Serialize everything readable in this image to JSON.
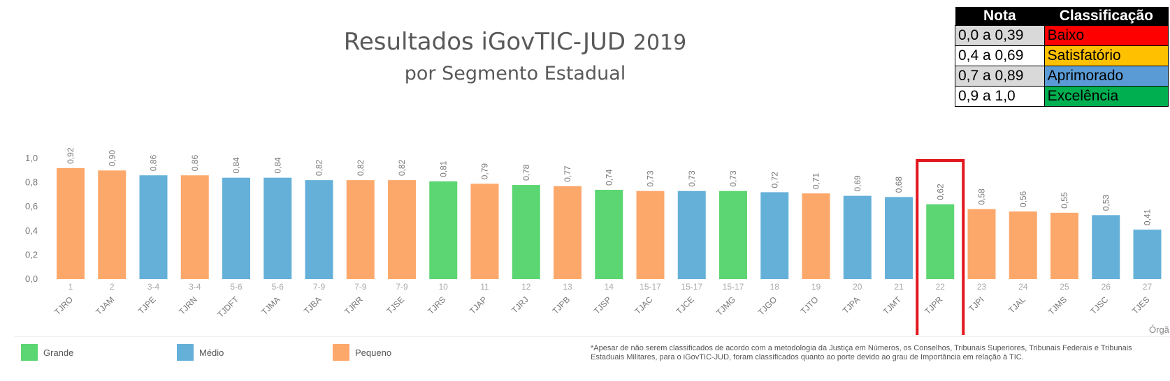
{
  "title": {
    "main": "Resultados iGovTIC-JUD",
    "year": "2019",
    "subtitle": "por Segmento Estadual"
  },
  "legend_table": {
    "headers": [
      "Nota",
      "Classificação"
    ],
    "rows": [
      {
        "range": "0,0 a 0,39",
        "label": "Baixo",
        "color": "#ff0000"
      },
      {
        "range": "0,4 a 0,69",
        "label": "Satisfatório",
        "color": "#ffc000"
      },
      {
        "range": "0,7 a 0,89",
        "label": "Aprimorado",
        "color": "#5b9bd5"
      },
      {
        "range": "0,9 a 1,0",
        "label": "Excelência",
        "color": "#00b050"
      }
    ]
  },
  "bottom_legend": [
    {
      "label": "Grande",
      "color": "#5cd672"
    },
    {
      "label": "Médio",
      "color": "#64b0d8"
    },
    {
      "label": "Pequeno",
      "color": "#fda86b"
    }
  ],
  "footnote": "*Apesar de não serem classificados de acordo com a metodologia da Justiça em Números, os Conselhos, Tribunais Superiores, Tribunais Federais e Tribunais Estaduais Militares, para o iGovTIC-JUD, foram classificados quanto ao porte devido ao grau de Importância em relação à TIC.",
  "axis_right_label": "Órgã",
  "chart_data": {
    "type": "bar",
    "ylim": [
      0,
      1.0
    ],
    "yticks": [
      "0,0",
      "0,2",
      "0,4",
      "0,6",
      "0,8",
      "1,0"
    ],
    "highlight_category": "TJPR",
    "categories": [
      "TJRO",
      "TJAM",
      "TJPE",
      "TJRN",
      "TJDFT",
      "TJMA",
      "TJBA",
      "TJRR",
      "TJSE",
      "TJRS",
      "TJAP",
      "TJRJ",
      "TJPB",
      "TJSP",
      "TJAC",
      "TJCE",
      "TJMG",
      "TJGO",
      "TJTO",
      "TJPA",
      "TJMT",
      "TJPR",
      "TJPI",
      "TJAL",
      "TJMS",
      "TJSC",
      "TJES"
    ],
    "ranks": [
      "1",
      "2",
      "3-4",
      "3-4",
      "5-6",
      "5-6",
      "7-9",
      "7-9",
      "7-9",
      "10",
      "11",
      "12",
      "13",
      "14",
      "15-17",
      "15-17",
      "15-17",
      "18",
      "19",
      "20",
      "21",
      "22",
      "23",
      "24",
      "25",
      "26",
      "27"
    ],
    "values": [
      0.92,
      0.9,
      0.86,
      0.86,
      0.84,
      0.84,
      0.82,
      0.82,
      0.82,
      0.81,
      0.79,
      0.78,
      0.77,
      0.74,
      0.73,
      0.73,
      0.73,
      0.72,
      0.71,
      0.69,
      0.68,
      0.62,
      0.58,
      0.56,
      0.55,
      0.53,
      0.41
    ],
    "value_labels": [
      "0,92",
      "0,90",
      "0,86",
      "0,86",
      "0,84",
      "0,84",
      "0,82",
      "0,82",
      "0,82",
      "0,81",
      "0,79",
      "0,78",
      "0,77",
      "0,74",
      "0,73",
      "0,73",
      "0,73",
      "0,72",
      "0,71",
      "0,69",
      "0,68",
      "0,62",
      "0,58",
      "0,56",
      "0,55",
      "0,53",
      "0,41"
    ],
    "sizes": [
      "Pequeno",
      "Pequeno",
      "Médio",
      "Pequeno",
      "Médio",
      "Médio",
      "Médio",
      "Pequeno",
      "Pequeno",
      "Grande",
      "Pequeno",
      "Grande",
      "Pequeno",
      "Grande",
      "Pequeno",
      "Médio",
      "Grande",
      "Médio",
      "Pequeno",
      "Médio",
      "Médio",
      "Grande",
      "Pequeno",
      "Pequeno",
      "Pequeno",
      "Médio",
      "Médio"
    ],
    "size_colors": {
      "Grande": "#5cd672",
      "Médio": "#64b0d8",
      "Pequeno": "#fda86b"
    },
    "highlight_color": "#e3161d"
  }
}
